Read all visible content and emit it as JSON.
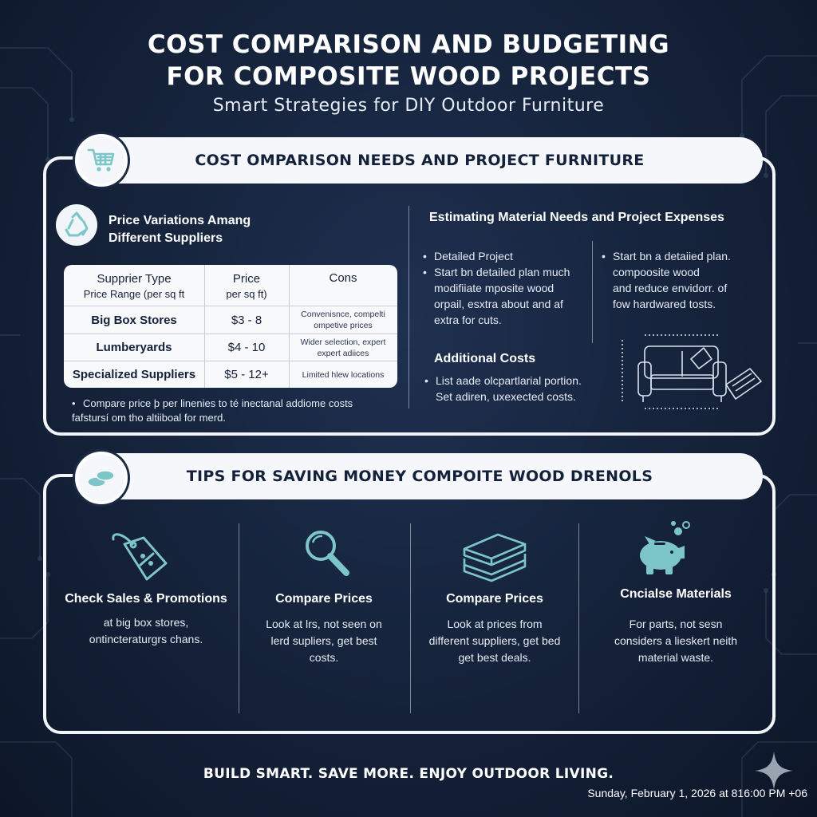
{
  "header": {
    "title_line1": "COST COMPARISON AND BUDGETING",
    "title_line2": "FOR COMPOSITE WOOD PROJECTS",
    "subtitle": "Smart Strategies for DIY Outdoor Furniture"
  },
  "section1": {
    "heading": "COST OMPARISON NEEDS AND PROJECT FURNITURE",
    "left": {
      "heading_line1": "Price Variations Amang",
      "heading_line2": "Different Suppliers",
      "table": {
        "col1_header_line1": "Supprier Type",
        "col1_header_line2": "Price Range (per sq ft",
        "col2_header_line1": "Price",
        "col2_header_line2": "per sq ft)",
        "col3_header": "Cons",
        "rows": [
          {
            "name": "Big Box Stores",
            "price": "$3 - 8",
            "cons_line1": "Convenisnce, compelti",
            "cons_line2": "ompetive prices"
          },
          {
            "name": "Lumberyards",
            "price": "$4 - 10",
            "cons_line1": "Wider selection, expert",
            "cons_line2": "expert adiices"
          },
          {
            "name": "Specialized Suppliers",
            "price": "$5 - 12+",
            "cons_line1": "Limited hlew locations",
            "cons_line2": ""
          }
        ]
      },
      "note_line1": "Compare price þ per linenies to té inectanal addiome costs",
      "note_line2": "fafstursí om tho altiiboal for merd."
    },
    "right": {
      "heading": "Estimating Material Needs and Project Expenses",
      "col_a": [
        "Detailed Project",
        "Start bn detailed plan much",
        "modifiiate mposite wood",
        "orpail, esxtra about and af",
        "extra for cuts."
      ],
      "col_b": [
        "Start bn a detaiied plan.",
        "compoosite wood",
        "and reduce envidorr. of",
        "fow hardwared tosts."
      ],
      "additional_heading": "Additional Costs",
      "additional_lines": [
        "List aade olcpartlarial portion.",
        "Set adiren, uxexected costs."
      ]
    }
  },
  "section2": {
    "heading": "TIPS FOR SAVING MONEY COMPOITE WOOD DRENOLS",
    "tips": [
      {
        "icon": "price-tag-icon",
        "title": "Check Sales & Promotions",
        "line1": "at big box stores,",
        "line2": "ontincteraturgrs chans.",
        "line3": ""
      },
      {
        "icon": "magnifier-icon",
        "title": "Compare Prices",
        "line1": "Look at lrs, not seen on",
        "line2": "lerd supliers, get best",
        "line3": "costs."
      },
      {
        "icon": "lumber-stack-icon",
        "title": "Compare Prices",
        "line1": "Look at prices from",
        "line2": "different suppliers, get bed",
        "line3": "get best deals."
      },
      {
        "icon": "piggy-bank-icon",
        "title": "Cncialse Materials",
        "line1": "For parts, not sesn",
        "line2": "considers a lieskert neith",
        "line3": "material waste."
      }
    ]
  },
  "footer": {
    "tagline": "BUILD SMART. SAVE MORE. ENJOY OUTDOOR LIVING.",
    "timestamp": "Sunday, February 1, 2026 at 816:00 PM +06"
  },
  "colors": {
    "background": "#16243d",
    "accent": "#8fd3d6",
    "panel_border": "#f1f4f8"
  }
}
